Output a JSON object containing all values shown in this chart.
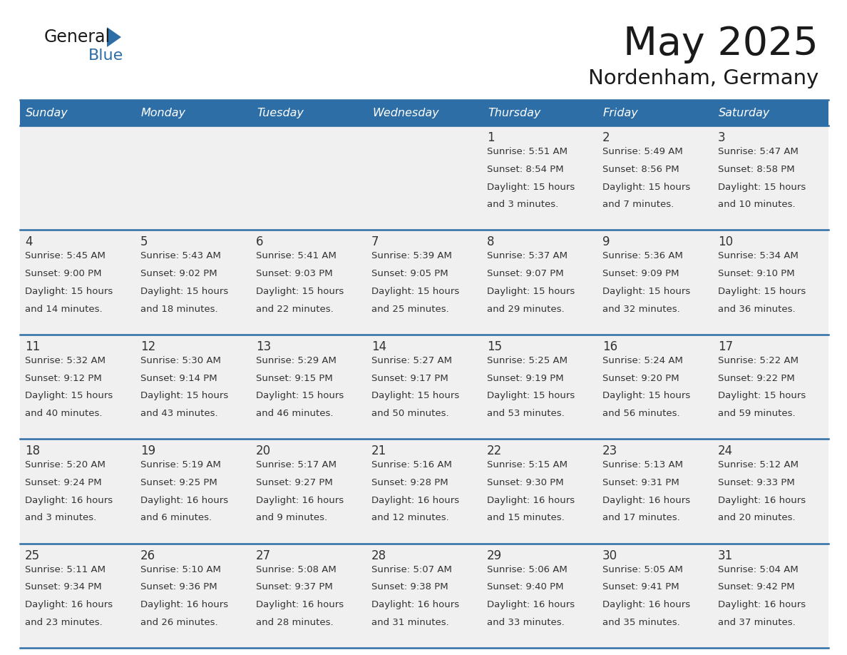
{
  "title": "May 2025",
  "subtitle": "Nordenham, Germany",
  "days_of_week": [
    "Sunday",
    "Monday",
    "Tuesday",
    "Wednesday",
    "Thursday",
    "Friday",
    "Saturday"
  ],
  "header_bg": "#2E6EA6",
  "header_text_color": "#FFFFFF",
  "cell_bg": "#F0F0F0",
  "border_color": "#2E6EA6",
  "text_color": "#333333",
  "title_color": "#1a1a1a",
  "logo_text_color": "#1a1a1a",
  "logo_blue_color": "#2E6EA6",
  "calendar_data": [
    [
      null,
      null,
      null,
      null,
      {
        "day": 1,
        "sunrise": "5:51 AM",
        "sunset": "8:54 PM",
        "daylight_hours": 15,
        "daylight_mins": 3
      },
      {
        "day": 2,
        "sunrise": "5:49 AM",
        "sunset": "8:56 PM",
        "daylight_hours": 15,
        "daylight_mins": 7
      },
      {
        "day": 3,
        "sunrise": "5:47 AM",
        "sunset": "8:58 PM",
        "daylight_hours": 15,
        "daylight_mins": 10
      }
    ],
    [
      {
        "day": 4,
        "sunrise": "5:45 AM",
        "sunset": "9:00 PM",
        "daylight_hours": 15,
        "daylight_mins": 14
      },
      {
        "day": 5,
        "sunrise": "5:43 AM",
        "sunset": "9:02 PM",
        "daylight_hours": 15,
        "daylight_mins": 18
      },
      {
        "day": 6,
        "sunrise": "5:41 AM",
        "sunset": "9:03 PM",
        "daylight_hours": 15,
        "daylight_mins": 22
      },
      {
        "day": 7,
        "sunrise": "5:39 AM",
        "sunset": "9:05 PM",
        "daylight_hours": 15,
        "daylight_mins": 25
      },
      {
        "day": 8,
        "sunrise": "5:37 AM",
        "sunset": "9:07 PM",
        "daylight_hours": 15,
        "daylight_mins": 29
      },
      {
        "day": 9,
        "sunrise": "5:36 AM",
        "sunset": "9:09 PM",
        "daylight_hours": 15,
        "daylight_mins": 32
      },
      {
        "day": 10,
        "sunrise": "5:34 AM",
        "sunset": "9:10 PM",
        "daylight_hours": 15,
        "daylight_mins": 36
      }
    ],
    [
      {
        "day": 11,
        "sunrise": "5:32 AM",
        "sunset": "9:12 PM",
        "daylight_hours": 15,
        "daylight_mins": 40
      },
      {
        "day": 12,
        "sunrise": "5:30 AM",
        "sunset": "9:14 PM",
        "daylight_hours": 15,
        "daylight_mins": 43
      },
      {
        "day": 13,
        "sunrise": "5:29 AM",
        "sunset": "9:15 PM",
        "daylight_hours": 15,
        "daylight_mins": 46
      },
      {
        "day": 14,
        "sunrise": "5:27 AM",
        "sunset": "9:17 PM",
        "daylight_hours": 15,
        "daylight_mins": 50
      },
      {
        "day": 15,
        "sunrise": "5:25 AM",
        "sunset": "9:19 PM",
        "daylight_hours": 15,
        "daylight_mins": 53
      },
      {
        "day": 16,
        "sunrise": "5:24 AM",
        "sunset": "9:20 PM",
        "daylight_hours": 15,
        "daylight_mins": 56
      },
      {
        "day": 17,
        "sunrise": "5:22 AM",
        "sunset": "9:22 PM",
        "daylight_hours": 15,
        "daylight_mins": 59
      }
    ],
    [
      {
        "day": 18,
        "sunrise": "5:20 AM",
        "sunset": "9:24 PM",
        "daylight_hours": 16,
        "daylight_mins": 3
      },
      {
        "day": 19,
        "sunrise": "5:19 AM",
        "sunset": "9:25 PM",
        "daylight_hours": 16,
        "daylight_mins": 6
      },
      {
        "day": 20,
        "sunrise": "5:17 AM",
        "sunset": "9:27 PM",
        "daylight_hours": 16,
        "daylight_mins": 9
      },
      {
        "day": 21,
        "sunrise": "5:16 AM",
        "sunset": "9:28 PM",
        "daylight_hours": 16,
        "daylight_mins": 12
      },
      {
        "day": 22,
        "sunrise": "5:15 AM",
        "sunset": "9:30 PM",
        "daylight_hours": 16,
        "daylight_mins": 15
      },
      {
        "day": 23,
        "sunrise": "5:13 AM",
        "sunset": "9:31 PM",
        "daylight_hours": 16,
        "daylight_mins": 17
      },
      {
        "day": 24,
        "sunrise": "5:12 AM",
        "sunset": "9:33 PM",
        "daylight_hours": 16,
        "daylight_mins": 20
      }
    ],
    [
      {
        "day": 25,
        "sunrise": "5:11 AM",
        "sunset": "9:34 PM",
        "daylight_hours": 16,
        "daylight_mins": 23
      },
      {
        "day": 26,
        "sunrise": "5:10 AM",
        "sunset": "9:36 PM",
        "daylight_hours": 16,
        "daylight_mins": 26
      },
      {
        "day": 27,
        "sunrise": "5:08 AM",
        "sunset": "9:37 PM",
        "daylight_hours": 16,
        "daylight_mins": 28
      },
      {
        "day": 28,
        "sunrise": "5:07 AM",
        "sunset": "9:38 PM",
        "daylight_hours": 16,
        "daylight_mins": 31
      },
      {
        "day": 29,
        "sunrise": "5:06 AM",
        "sunset": "9:40 PM",
        "daylight_hours": 16,
        "daylight_mins": 33
      },
      {
        "day": 30,
        "sunrise": "5:05 AM",
        "sunset": "9:41 PM",
        "daylight_hours": 16,
        "daylight_mins": 35
      },
      {
        "day": 31,
        "sunrise": "5:04 AM",
        "sunset": "9:42 PM",
        "daylight_hours": 16,
        "daylight_mins": 37
      }
    ]
  ]
}
